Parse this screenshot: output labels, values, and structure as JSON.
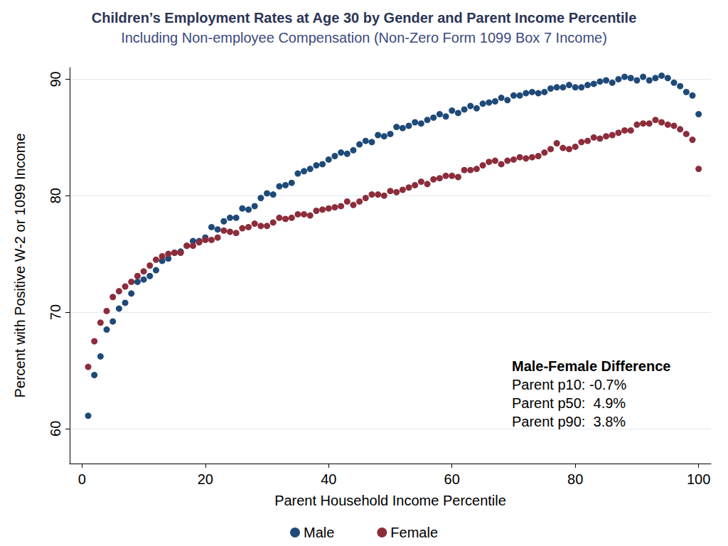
{
  "chart_data": {
    "type": "scatter",
    "title": "Children’s Employment Rates at Age 30 by Gender and Parent Income Percentile",
    "subtitle": "Including Non-employee Compensation (Non-Zero Form 1099 Box 7 Income)",
    "x_label": "Parent Household Income Percentile",
    "y_label": "Percent with Positive W-2 or 1099 Income",
    "x": [
      1,
      2,
      3,
      4,
      5,
      6,
      7,
      8,
      9,
      10,
      11,
      12,
      13,
      14,
      15,
      16,
      17,
      18,
      19,
      20,
      21,
      22,
      23,
      24,
      25,
      26,
      27,
      28,
      29,
      30,
      31,
      32,
      33,
      34,
      35,
      36,
      37,
      38,
      39,
      40,
      41,
      42,
      43,
      44,
      45,
      46,
      47,
      48,
      49,
      50,
      51,
      52,
      53,
      54,
      55,
      56,
      57,
      58,
      59,
      60,
      61,
      62,
      63,
      64,
      65,
      66,
      67,
      68,
      69,
      70,
      71,
      72,
      73,
      74,
      75,
      76,
      77,
      78,
      79,
      80,
      81,
      82,
      83,
      84,
      85,
      86,
      87,
      88,
      89,
      90,
      91,
      92,
      93,
      94,
      95,
      96,
      97,
      98,
      99,
      100
    ],
    "series": [
      {
        "name": "Male",
        "color": "#1f4a78",
        "marker": "circle",
        "values": [
          61.1,
          64.6,
          66.2,
          68.5,
          69.2,
          70.3,
          70.8,
          71.6,
          72.6,
          72.8,
          73.1,
          73.6,
          74.4,
          74.6,
          75.1,
          75.2,
          75.7,
          76.1,
          76.1,
          76.4,
          77.3,
          77.1,
          77.8,
          78.1,
          78.1,
          78.9,
          78.8,
          79.1,
          79.8,
          80.2,
          80.1,
          80.8,
          80.9,
          81.1,
          81.9,
          82.1,
          82.3,
          82.6,
          82.7,
          83.1,
          83.4,
          83.7,
          83.6,
          83.9,
          84.4,
          84.7,
          84.6,
          85.2,
          85.1,
          85.3,
          85.9,
          85.8,
          86.0,
          86.3,
          86.2,
          86.5,
          86.7,
          87.0,
          86.8,
          87.3,
          87.1,
          87.4,
          87.7,
          87.5,
          87.9,
          88.0,
          88.1,
          88.4,
          88.2,
          88.6,
          88.6,
          88.8,
          88.9,
          88.8,
          88.9,
          89.2,
          89.3,
          89.3,
          89.5,
          89.3,
          89.3,
          89.5,
          89.6,
          89.8,
          89.9,
          89.7,
          90.0,
          90.2,
          90.1,
          89.9,
          90.2,
          89.9,
          90.1,
          90.3,
          90.1,
          89.7,
          89.4,
          88.9,
          88.6,
          87.0
        ]
      },
      {
        "name": "Female",
        "color": "#8c2d3b",
        "marker": "circle",
        "values": [
          65.3,
          67.5,
          69.1,
          70.1,
          71.3,
          71.8,
          72.2,
          72.6,
          73.1,
          73.5,
          74.0,
          74.5,
          74.8,
          75.0,
          75.1,
          75.1,
          75.7,
          75.7,
          76.0,
          76.2,
          76.2,
          76.4,
          77.0,
          76.9,
          76.8,
          77.2,
          77.3,
          77.6,
          77.4,
          77.4,
          77.7,
          78.1,
          78.0,
          78.1,
          78.4,
          78.4,
          78.3,
          78.7,
          78.8,
          78.9,
          79.0,
          79.1,
          79.5,
          79.2,
          79.5,
          79.8,
          80.1,
          80.1,
          80.0,
          80.4,
          80.3,
          80.5,
          80.7,
          80.9,
          81.2,
          81.0,
          81.4,
          81.5,
          81.7,
          81.7,
          81.6,
          82.2,
          82.2,
          82.3,
          82.6,
          82.9,
          83.0,
          82.7,
          83.0,
          83.1,
          83.3,
          83.2,
          83.3,
          83.4,
          83.7,
          84.0,
          84.5,
          84.1,
          84.0,
          84.2,
          84.6,
          84.7,
          85.0,
          84.9,
          85.1,
          85.2,
          85.4,
          85.6,
          85.6,
          86.1,
          86.2,
          86.2,
          86.5,
          86.3,
          86.1,
          86.0,
          85.7,
          85.3,
          84.8,
          82.3
        ]
      }
    ],
    "xlim": [
      -2,
      102
    ],
    "ylim": [
      57,
      91
    ],
    "xticks": [
      0,
      20,
      40,
      60,
      80,
      100
    ],
    "yticks": [
      60,
      70,
      80,
      90
    ],
    "grid": true,
    "legend": "bottom",
    "annotation": {
      "title": "Male-Female Difference",
      "lines": [
        "Parent p10: -0.7%",
        "Parent p50:  4.9%",
        "Parent p90:  3.8%"
      ]
    }
  }
}
